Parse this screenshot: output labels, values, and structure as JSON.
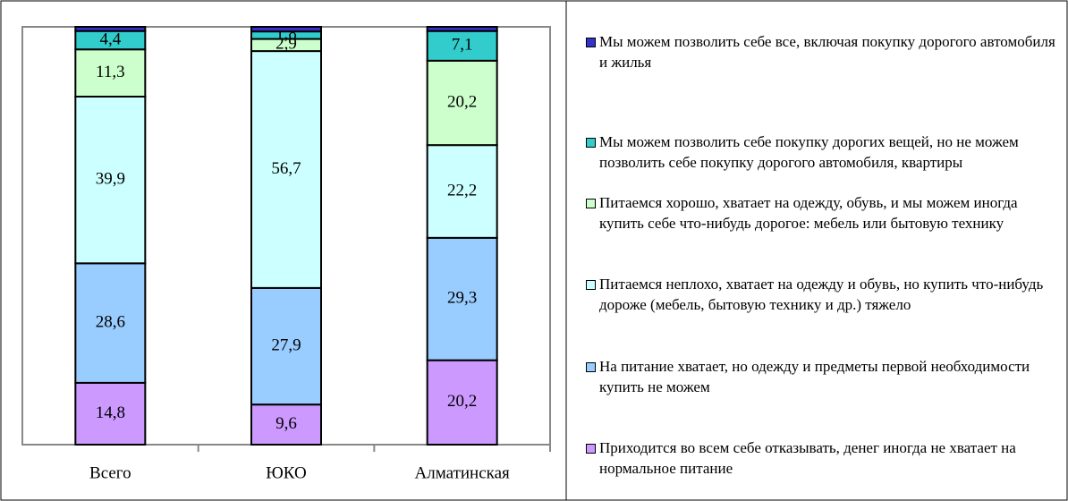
{
  "chart_data": {
    "type": "stacked_bar",
    "categories": [
      "Всего",
      "ЮКО",
      "Алматинская"
    ],
    "ylim": [
      0,
      100
    ],
    "series": [
      {
        "name": "Приходится во всем себе отказывать, денег иногда не хватает на нормальное питание",
        "color": "#cc99ff",
        "values": [
          14.8,
          9.6,
          20.2
        ],
        "value_labels": [
          "14,8",
          "9,6",
          "20,2"
        ]
      },
      {
        "name": "На питание хватает, но одежду и предметы первой необходимости купить не можем",
        "color": "#99ccff",
        "values": [
          28.6,
          27.9,
          29.3
        ],
        "value_labels": [
          "28,6",
          "27,9",
          "29,3"
        ]
      },
      {
        "name": "Питаемся неплохо, хватает на одежду и обувь, но купить что-нибудь дороже (мебель, бытовую технику и др.) тяжело",
        "color": "#ccffff",
        "values": [
          39.9,
          56.7,
          22.2
        ],
        "value_labels": [
          "39,9",
          "56,7",
          "22,2"
        ]
      },
      {
        "name": "Питаемся хорошо, хватает на одежду, обувь, и мы можем иногда купить себе что-нибудь дорогое: мебель или бытовую технику",
        "color": "#ccffcc",
        "values": [
          11.3,
          2.9,
          20.2
        ],
        "value_labels": [
          "11,3",
          "2,9",
          "20,2"
        ]
      },
      {
        "name": "Мы  можем позволить себе покупку дорогих вещей, но не можем позволить  себе покупку дорогого автомобиля, квартиры",
        "color": "#33cccc",
        "values": [
          4.4,
          1.8,
          7.1
        ],
        "value_labels": [
          "4,4",
          "1,8",
          "7,1"
        ]
      },
      {
        "name": "Мы можем позволить себе все, включая покупку дорогого автомобиля и жилья",
        "color": "#3333cc",
        "values": [
          1.0,
          1.1,
          1.0
        ]
      }
    ]
  }
}
